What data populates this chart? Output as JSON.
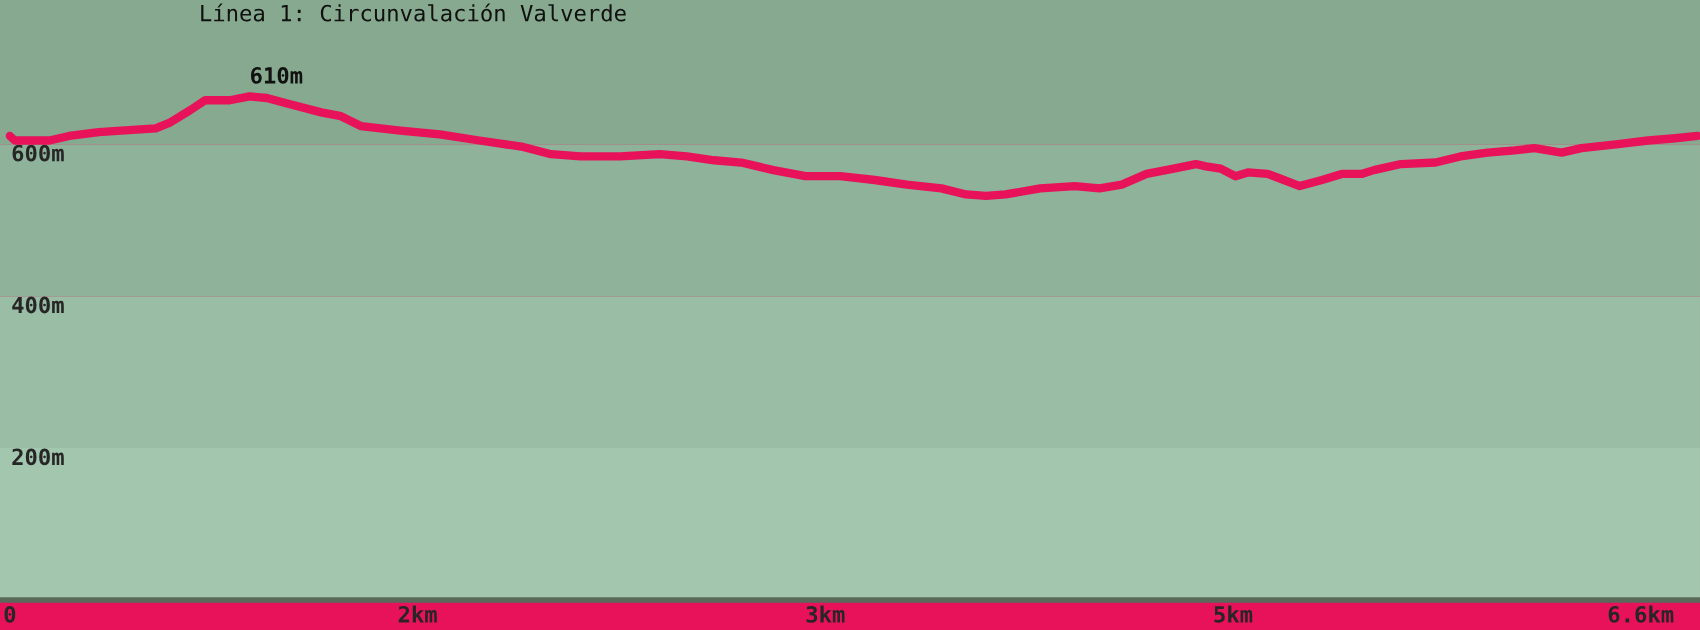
{
  "chart_data": {
    "type": "line",
    "title": "Línea 1: Circunvalación Valverde",
    "x": [
      0,
      0.02,
      0.16,
      0.24,
      0.36,
      0.45,
      0.59,
      0.65,
      0.73,
      0.79,
      0.89,
      0.97,
      1.04,
      1.13,
      1.26,
      1.34,
      1.42,
      1.58,
      1.74,
      1.9,
      2.07,
      2.19,
      2.31,
      2.47,
      2.63,
      2.74,
      2.85,
      2.96,
      3.09,
      3.22,
      3.36,
      3.5,
      3.63,
      3.77,
      3.87,
      3.95,
      4.03,
      4.17,
      4.31,
      4.41,
      4.5,
      4.6,
      4.71,
      4.8,
      4.84,
      4.9,
      4.96,
      5.01,
      5.09,
      5.14,
      5.22,
      5.31,
      5.39,
      5.47,
      5.52,
      5.63,
      5.77,
      5.87,
      5.98,
      6.09,
      6.17,
      6.28,
      6.36,
      6.5,
      6.63,
      6.74,
      6.83
    ],
    "series": [
      {
        "color": "#e8125a",
        "values": [
          611,
          605,
          605,
          611,
          616,
          618,
          621,
          629,
          645,
          658,
          658,
          663,
          661,
          653,
          642,
          637,
          624,
          618,
          613,
          605,
          597,
          587,
          584,
          584,
          587,
          584,
          579,
          576,
          566,
          558,
          558,
          553,
          547,
          542,
          534,
          532,
          534,
          542,
          545,
          542,
          547,
          561,
          568,
          574,
          571,
          568,
          558,
          563,
          561,
          555,
          545,
          553,
          561,
          561,
          566,
          574,
          576,
          584,
          589,
          592,
          595,
          589,
          595,
          600,
          605,
          608,
          611
        ]
      }
    ],
    "annotations": [
      "610m"
    ],
    "xlim": [
      -0.04,
      6.84
    ],
    "xticks": [
      0,
      {
        "value": 1.65,
        "label": "2km"
      },
      {
        "value": 3.3,
        "label": "3km"
      },
      {
        "value": 4.95,
        "label": "5km"
      },
      {
        "value": 6.6,
        "label": "6.6km"
      }
    ],
    "ylim": [
      0,
      790
    ],
    "yticks": [
      {
        "value": 200,
        "label": "200m"
      },
      {
        "value": 400,
        "label": "400m"
      },
      {
        "value": 600,
        "label": "600m"
      }
    ],
    "bands": [
      {
        "axis": "y",
        "from": 0,
        "to": 200,
        "color": "#a3c6ae"
      },
      {
        "axis": "y",
        "from": 200,
        "to": 400,
        "color": "#9abda5"
      },
      {
        "axis": "y",
        "from": 400,
        "to": 600,
        "color": "#8fb39a"
      },
      {
        "axis": "y",
        "from": 600,
        "to": 790,
        "color": "#86a98f"
      }
    ],
    "grid": false,
    "line_style": "solid",
    "marker": "none"
  }
}
